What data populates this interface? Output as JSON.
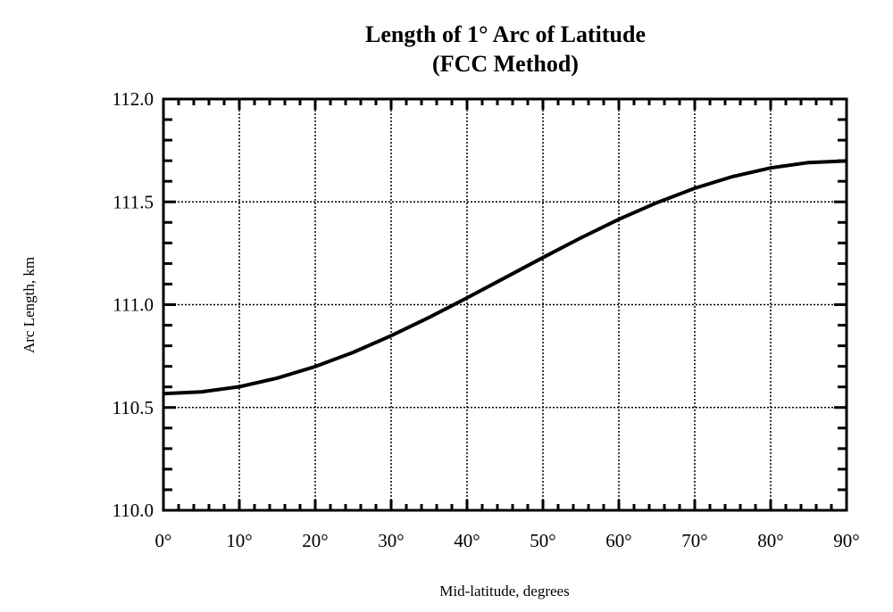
{
  "chart_data": {
    "type": "line",
    "title": "Length of 1° Arc of Latitude",
    "subtitle": "(FCC Method)",
    "xlabel": "Mid-latitude, degrees",
    "ylabel": "Arc Length, km",
    "xlim": [
      0,
      90
    ],
    "ylim": [
      110.0,
      112.0
    ],
    "x_ticks": [
      0,
      10,
      20,
      30,
      40,
      50,
      60,
      70,
      80,
      90
    ],
    "x_tick_labels": [
      "0°",
      "10°",
      "20°",
      "30°",
      "40°",
      "50°",
      "60°",
      "70°",
      "80°",
      "90°"
    ],
    "y_ticks": [
      110.0,
      110.5,
      111.0,
      111.5,
      112.0
    ],
    "y_tick_labels": [
      "110.0",
      "110.5",
      "111.0",
      "111.5",
      "112.0"
    ],
    "x_minor_step": 2,
    "y_minor_step": 0.1,
    "grid": true,
    "series": [
      {
        "name": "Arc length",
        "x": [
          0,
          5,
          10,
          15,
          20,
          25,
          30,
          35,
          40,
          45,
          50,
          55,
          60,
          65,
          70,
          75,
          80,
          85,
          90
        ],
        "y": [
          110.567,
          110.576,
          110.601,
          110.643,
          110.699,
          110.768,
          110.849,
          110.938,
          111.033,
          111.131,
          111.229,
          111.325,
          111.415,
          111.496,
          111.566,
          111.623,
          111.665,
          111.691,
          111.699
        ]
      }
    ]
  }
}
